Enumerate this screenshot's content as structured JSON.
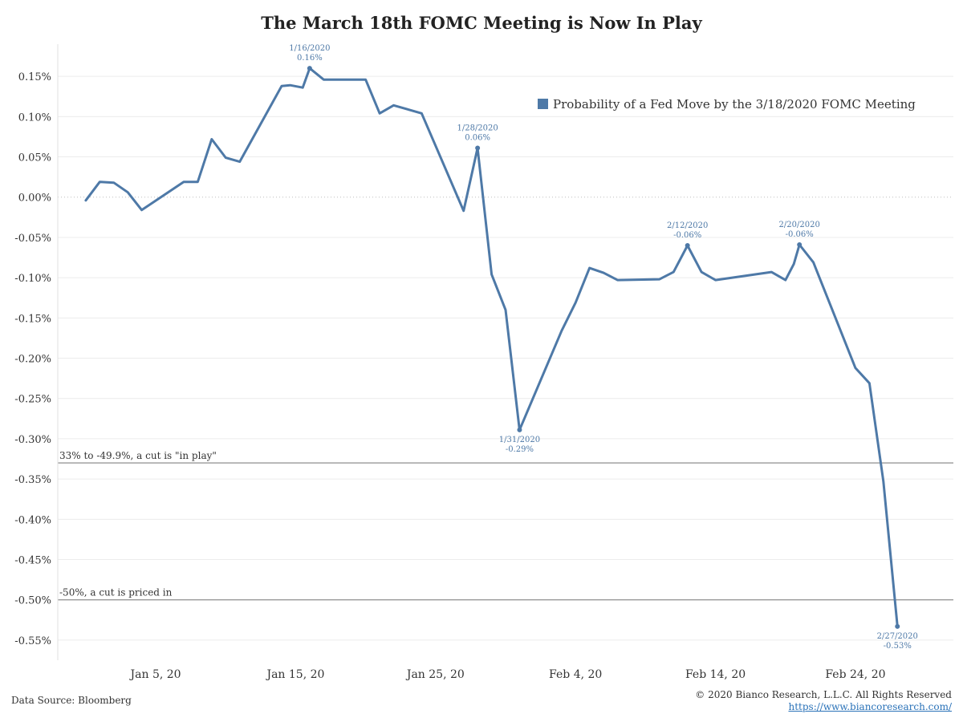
{
  "chart_data": {
    "type": "line",
    "title": "The March 18th FOMC Meeting is Now In Play",
    "xlabel": "",
    "ylabel": "",
    "x_ticks": [
      {
        "label": "Jan 5, 20",
        "date": "2020-01-05"
      },
      {
        "label": "Jan 15, 20",
        "date": "2020-01-15"
      },
      {
        "label": "Jan 25, 20",
        "date": "2020-01-25"
      },
      {
        "label": "Feb 4, 20",
        "date": "2020-02-04"
      },
      {
        "label": "Feb 14, 20",
        "date": "2020-02-14"
      },
      {
        "label": "Feb 24, 20",
        "date": "2020-02-24"
      }
    ],
    "y_ticks": [
      {
        "label": "0.15%",
        "value": 0.15
      },
      {
        "label": "0.10%",
        "value": 0.1
      },
      {
        "label": "0.05%",
        "value": 0.05
      },
      {
        "label": "0.00%",
        "value": 0.0
      },
      {
        "label": "-0.05%",
        "value": -0.05
      },
      {
        "label": "-0.10%",
        "value": -0.1
      },
      {
        "label": "-0.15%",
        "value": -0.15
      },
      {
        "label": "-0.20%",
        "value": -0.2
      },
      {
        "label": "-0.25%",
        "value": -0.25
      },
      {
        "label": "-0.30%",
        "value": -0.3
      },
      {
        "label": "-0.35%",
        "value": -0.35
      },
      {
        "label": "-0.40%",
        "value": -0.4
      },
      {
        "label": "-0.45%",
        "value": -0.45
      },
      {
        "label": "-0.50%",
        "value": -0.5
      },
      {
        "label": "-0.55%",
        "value": -0.55
      }
    ],
    "xlim": [
      "2019-12-29",
      "2020-03-02"
    ],
    "ylim": [
      -0.575,
      0.19
    ],
    "grid": true,
    "legend_position": "top-right",
    "series": [
      {
        "name": "Probability of a Fed Move by the 3/18/2020 FOMC Meeting",
        "color": "#4e79a7",
        "points": [
          {
            "x": "2019-12-31",
            "y": -0.004
          },
          {
            "x": "2020-01-01",
            "y": 0.019
          },
          {
            "x": "2020-01-02",
            "y": 0.018
          },
          {
            "x": "2020-01-03",
            "y": 0.006
          },
          {
            "x": "2020-01-04",
            "y": -0.016
          },
          {
            "x": "2020-01-07",
            "y": 0.019
          },
          {
            "x": "2020-01-08",
            "y": 0.019
          },
          {
            "x": "2020-01-09",
            "y": 0.072
          },
          {
            "x": "2020-01-10",
            "y": 0.049
          },
          {
            "x": "2020-01-11",
            "y": 0.044
          },
          {
            "x": "2020-01-14",
            "y": 0.138
          },
          {
            "x": "2020-01-14.6",
            "y": 0.139
          },
          {
            "x": "2020-01-15.5",
            "y": 0.136
          },
          {
            "x": "2020-01-16",
            "y": 0.16
          },
          {
            "x": "2020-01-17",
            "y": 0.146
          },
          {
            "x": "2020-01-20",
            "y": 0.146
          },
          {
            "x": "2020-01-21",
            "y": 0.104
          },
          {
            "x": "2020-01-22",
            "y": 0.114
          },
          {
            "x": "2020-01-24",
            "y": 0.104
          },
          {
            "x": "2020-01-27",
            "y": -0.017
          },
          {
            "x": "2020-01-28",
            "y": 0.061
          },
          {
            "x": "2020-01-29",
            "y": -0.096
          },
          {
            "x": "2020-01-30",
            "y": -0.14
          },
          {
            "x": "2020-01-31",
            "y": -0.289
          },
          {
            "x": "2020-02-03",
            "y": -0.166
          },
          {
            "x": "2020-02-04",
            "y": -0.131
          },
          {
            "x": "2020-02-05",
            "y": -0.088
          },
          {
            "x": "2020-02-06",
            "y": -0.094
          },
          {
            "x": "2020-02-07",
            "y": -0.103
          },
          {
            "x": "2020-02-10",
            "y": -0.102
          },
          {
            "x": "2020-02-11",
            "y": -0.093
          },
          {
            "x": "2020-02-12",
            "y": -0.06
          },
          {
            "x": "2020-02-13",
            "y": -0.093
          },
          {
            "x": "2020-02-14",
            "y": -0.103
          },
          {
            "x": "2020-02-18",
            "y": -0.093
          },
          {
            "x": "2020-02-19",
            "y": -0.103
          },
          {
            "x": "2020-02-19.6",
            "y": -0.083
          },
          {
            "x": "2020-02-20",
            "y": -0.059
          },
          {
            "x": "2020-02-21",
            "y": -0.081
          },
          {
            "x": "2020-02-24",
            "y": -0.212
          },
          {
            "x": "2020-02-25",
            "y": -0.231
          },
          {
            "x": "2020-02-26",
            "y": -0.353
          },
          {
            "x": "2020-02-27",
            "y": -0.533
          }
        ]
      }
    ],
    "annotations": [
      {
        "date_label": "1/16/2020",
        "value_label": "0.16%",
        "x": "2020-01-16",
        "y": 0.16,
        "position": "above"
      },
      {
        "date_label": "1/28/2020",
        "value_label": "0.06%",
        "x": "2020-01-28",
        "y": 0.061,
        "position": "above"
      },
      {
        "date_label": "1/31/2020",
        "value_label": "-0.29%",
        "x": "2020-01-31",
        "y": -0.289,
        "position": "below"
      },
      {
        "date_label": "2/12/2020",
        "value_label": "-0.06%",
        "x": "2020-02-12",
        "y": -0.06,
        "position": "above"
      },
      {
        "date_label": "2/20/2020",
        "value_label": "-0.06%",
        "x": "2020-02-20",
        "y": -0.059,
        "position": "above"
      },
      {
        "date_label": "2/27/2020",
        "value_label": "-0.53%",
        "x": "2020-02-27",
        "y": -0.533,
        "position": "below"
      }
    ],
    "reference_lines": [
      {
        "value": -0.33,
        "label": "33% to -49.9%, a cut is \"in play\""
      },
      {
        "value": -0.5,
        "label": "-50%, a cut is priced in"
      }
    ],
    "zero_line": {
      "value": 0.0,
      "style": "dotted"
    }
  },
  "footer": {
    "source": "Data Source: Bloomberg",
    "copyright": "© 2020 Bianco Research, L.L.C. All Rights Reserved",
    "url": "https://www.biancoresearch.com/"
  },
  "colors": {
    "line": "#4e79a7",
    "grid": "#ececec",
    "reference": "#999999",
    "axis_text": "#333333"
  }
}
